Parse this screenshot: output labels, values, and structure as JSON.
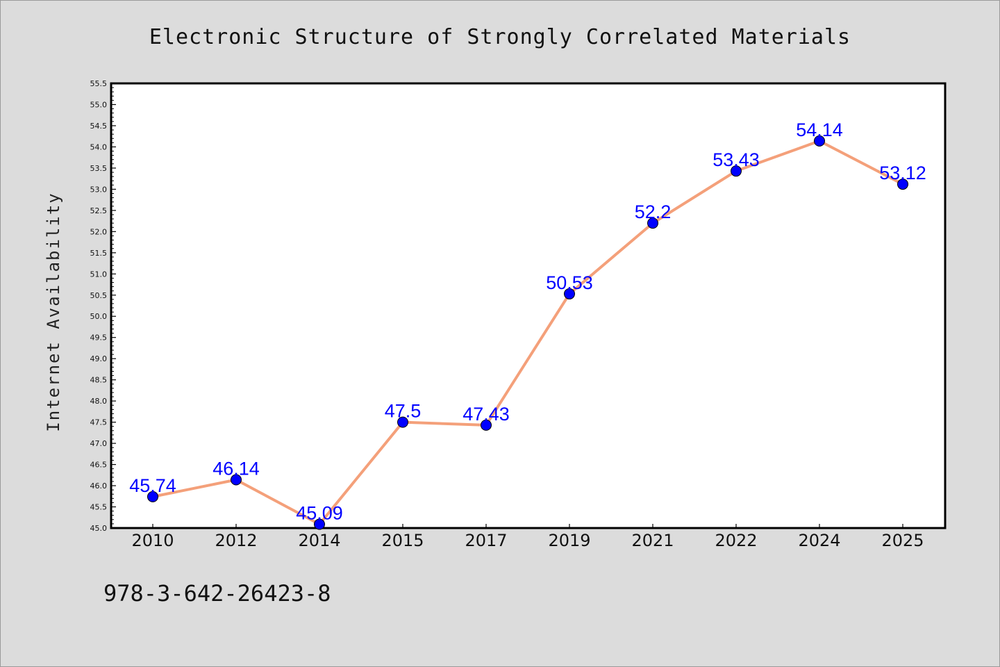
{
  "chart_data": {
    "type": "line",
    "title": "Electronic Structure of Strongly Correlated Materials",
    "xlabel": "",
    "ylabel": "Internet Availability",
    "categories": [
      "2010",
      "2012",
      "2014",
      "2015",
      "2017",
      "2019",
      "2021",
      "2022",
      "2024",
      "2025"
    ],
    "series": [
      {
        "values": [
          45.74,
          46.14,
          45.09,
          47.5,
          47.43,
          50.53,
          52.2,
          53.43,
          54.14,
          53.12
        ]
      }
    ],
    "data_labels": [
      "45.74",
      "46.14",
      "45.09",
      "47.5",
      "47.43",
      "50.53",
      "52.2",
      "53.43",
      "54.14",
      "53.12"
    ],
    "ylim": [
      45.0,
      55.5
    ],
    "y_tick_step": 0.5,
    "grid": false,
    "legend": "none",
    "colors": {
      "line": "#f4a07a",
      "marker": "#0000ff",
      "label": "#0000ff",
      "background": "#dcdcdc",
      "plot_background": "#ffffff"
    }
  },
  "footer": {
    "text": "978-3-642-26423-8"
  }
}
